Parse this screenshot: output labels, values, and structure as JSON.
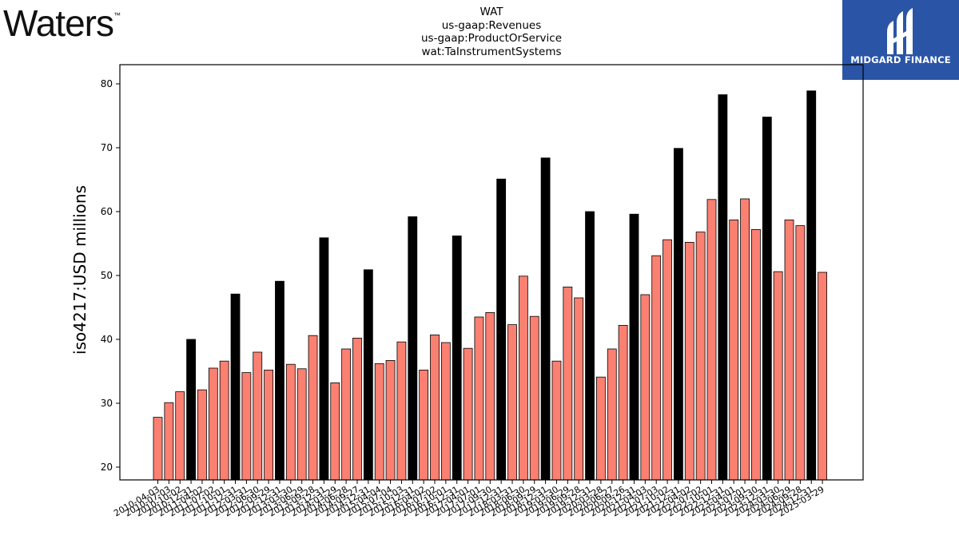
{
  "branding": {
    "left_logo_text": "Waters",
    "left_logo_tm": "™",
    "right_logo_text": "MIDGARD FINANCE"
  },
  "title_lines": [
    "WAT",
    "us-gaap:Revenues",
    "us-gaap:ProductOrService",
    "wat:TaInstrumentSystems"
  ],
  "colors": {
    "quarter_bar": "#fa8072",
    "annual_bar": "#000000",
    "bar_edge": "#000000",
    "logo_bg": "#2a55a6"
  },
  "chart_data": {
    "type": "bar",
    "title": "WAT\nus-gaap:Revenues\nus-gaap:ProductOrService\nwat:TaInstrumentSystems",
    "xlabel": "",
    "ylabel": "iso4217:USD  millions",
    "ylim": [
      18,
      83
    ],
    "yticks": [
      20,
      30,
      40,
      50,
      60,
      70,
      80
    ],
    "grid": false,
    "legend": "none",
    "x_tick_labels": [
      "2010-04-03",
      "2010-07-03",
      "2010-10-02",
      "2010-12-31",
      "2011-04-02",
      "2011-07-02",
      "2011-10-01",
      "2011-12-31",
      "2012-03-31",
      "2012-06-30",
      "2012-09-29",
      "2012-12-31",
      "2013-03-30",
      "2013-06-29",
      "2013-09-28",
      "2013-12-31",
      "2014-03-29",
      "2014-06-28",
      "2014-09-27",
      "2014-12-31",
      "2015-04-04",
      "2015-07-04",
      "2015-10-03",
      "2015-12-31",
      "2016-04-02",
      "2016-07-02",
      "2016-10-01",
      "2016-12-31",
      "2017-04-01",
      "2017-07-01",
      "2017-09-30",
      "2017-12-31",
      "2018-03-31",
      "2018-06-30",
      "2018-09-29",
      "2018-12-31",
      "2019-03-30",
      "2019-06-29",
      "2019-09-28",
      "2019-12-31",
      "2020-03-28",
      "2020-06-27",
      "2020-09-26",
      "2020-12-31",
      "2021-04-03",
      "2021-07-03",
      "2021-10-02",
      "2021-12-31",
      "2022-04-02",
      "2022-07-02",
      "2022-10-01",
      "2022-12-31",
      "2023-04-01",
      "2023-07-01",
      "2023-09-30",
      "2023-12-31",
      "2024-03-30",
      "2024-06-29",
      "2024-09-28",
      "2024-12-31",
      "2025-03-29"
    ],
    "bars": [
      {
        "v": 27.8,
        "annual": false
      },
      {
        "v": 30.1,
        "annual": false
      },
      {
        "v": 31.8,
        "annual": false
      },
      {
        "v": 40.0,
        "annual": true
      },
      {
        "v": 32.1,
        "annual": false
      },
      {
        "v": 35.5,
        "annual": false
      },
      {
        "v": 36.6,
        "annual": false
      },
      {
        "v": 47.1,
        "annual": true
      },
      {
        "v": 34.8,
        "annual": false
      },
      {
        "v": 38.0,
        "annual": false
      },
      {
        "v": 35.2,
        "annual": false
      },
      {
        "v": 49.1,
        "annual": true
      },
      {
        "v": 36.1,
        "annual": false
      },
      {
        "v": 35.4,
        "annual": false
      },
      {
        "v": 40.6,
        "annual": false
      },
      {
        "v": 55.9,
        "annual": true
      },
      {
        "v": 33.2,
        "annual": false
      },
      {
        "v": 38.5,
        "annual": false
      },
      {
        "v": 40.2,
        "annual": false
      },
      {
        "v": 50.9,
        "annual": true
      },
      {
        "v": 36.2,
        "annual": false
      },
      {
        "v": 36.7,
        "annual": false
      },
      {
        "v": 39.6,
        "annual": false
      },
      {
        "v": 59.2,
        "annual": true
      },
      {
        "v": 35.2,
        "annual": false
      },
      {
        "v": 40.7,
        "annual": false
      },
      {
        "v": 39.5,
        "annual": false
      },
      {
        "v": 56.2,
        "annual": true
      },
      {
        "v": 38.6,
        "annual": false
      },
      {
        "v": 43.5,
        "annual": false
      },
      {
        "v": 44.2,
        "annual": false
      },
      {
        "v": 65.1,
        "annual": true
      },
      {
        "v": 42.3,
        "annual": false
      },
      {
        "v": 49.9,
        "annual": false
      },
      {
        "v": 43.6,
        "annual": false
      },
      {
        "v": 68.4,
        "annual": true
      },
      {
        "v": 36.6,
        "annual": false
      },
      {
        "v": 48.2,
        "annual": false
      },
      {
        "v": 46.5,
        "annual": false
      },
      {
        "v": 60.0,
        "annual": true
      },
      {
        "v": 34.1,
        "annual": false
      },
      {
        "v": 38.5,
        "annual": false
      },
      {
        "v": 42.2,
        "annual": false
      },
      {
        "v": 59.6,
        "annual": true
      },
      {
        "v": 47.0,
        "annual": false
      },
      {
        "v": 53.1,
        "annual": false
      },
      {
        "v": 55.6,
        "annual": false
      },
      {
        "v": 69.9,
        "annual": true
      },
      {
        "v": 55.2,
        "annual": false
      },
      {
        "v": 56.8,
        "annual": false
      },
      {
        "v": 61.9,
        "annual": false
      },
      {
        "v": 78.3,
        "annual": true
      },
      {
        "v": 58.7,
        "annual": false
      },
      {
        "v": 62.0,
        "annual": false
      },
      {
        "v": 57.2,
        "annual": false
      },
      {
        "v": 74.8,
        "annual": true
      },
      {
        "v": 50.6,
        "annual": false
      },
      {
        "v": 58.7,
        "annual": false
      },
      {
        "v": 57.8,
        "annual": false
      },
      {
        "v": 78.9,
        "annual": true
      },
      {
        "v": 50.5,
        "annual": false
      }
    ]
  }
}
